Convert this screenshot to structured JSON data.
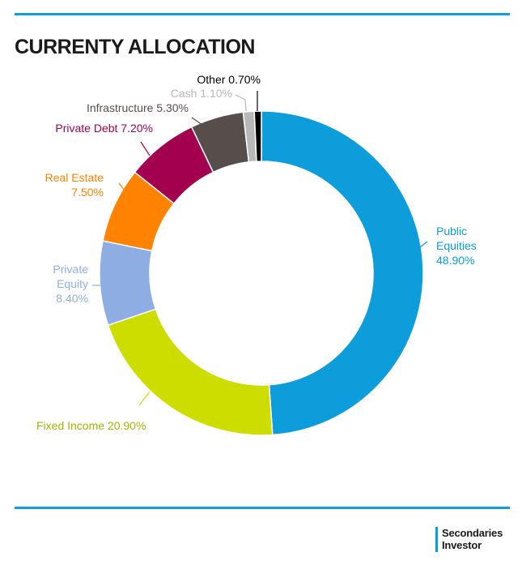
{
  "colors": {
    "accent": "#0e9fdb",
    "title": "#1a1a1a"
  },
  "title": "CURRENTY ALLOCATION",
  "brand": {
    "line1": "Secondaries",
    "line2": "Investor"
  },
  "chart_data": {
    "type": "pie",
    "donut": true,
    "title": "CURRENTY ALLOCATION",
    "unit": "%",
    "slices": [
      {
        "label": "Public Equities",
        "value": 48.9,
        "display": "48.90%",
        "color": "#0d9ddb"
      },
      {
        "label": "Fixed Income",
        "value": 20.9,
        "display": "20.90%",
        "color": "#cedd00"
      },
      {
        "label": "Private Equity",
        "value": 8.4,
        "display": "8.40%",
        "color": "#8eaee3"
      },
      {
        "label": "Real Estate",
        "value": 7.5,
        "display": "7.50%",
        "color": "#ff8200"
      },
      {
        "label": "Private Debt",
        "value": 7.2,
        "display": "7.20%",
        "color": "#a3004f"
      },
      {
        "label": "Infrastructure",
        "value": 5.3,
        "display": "5.30%",
        "color": "#574e4c"
      },
      {
        "label": "Cash",
        "value": 1.1,
        "display": "1.10%",
        "color": "#b8b8b8"
      },
      {
        "label": "Other",
        "value": 0.7,
        "display": "0.70%",
        "color": "#000000"
      }
    ]
  }
}
